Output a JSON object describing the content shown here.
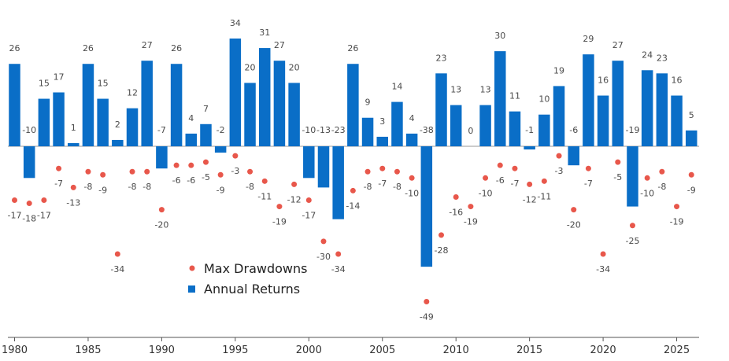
{
  "chart_data": {
    "type": "bar",
    "title": "",
    "xlabel": "",
    "ylabel": "",
    "x": [
      1980,
      1981,
      1982,
      1983,
      1984,
      1985,
      1986,
      1987,
      1988,
      1989,
      1990,
      1991,
      1992,
      1993,
      1994,
      1995,
      1996,
      1997,
      1998,
      1999,
      2000,
      2001,
      2002,
      2003,
      2004,
      2005,
      2006,
      2007,
      2008,
      2009,
      2010,
      2011,
      2012,
      2013,
      2014,
      2015,
      2016,
      2017,
      2018,
      2019,
      2020,
      2021,
      2022,
      2023,
      2024,
      2025,
      2026
    ],
    "series": [
      {
        "name": "Annual Returns",
        "kind": "bar",
        "color": "#0a6ec7",
        "values": [
          26,
          -10,
          15,
          17,
          1,
          26,
          15,
          2,
          12,
          27,
          -7,
          26,
          4,
          7,
          -2,
          34,
          20,
          31,
          27,
          20,
          -10,
          -13,
          -23,
          26,
          9,
          3,
          14,
          4,
          -38,
          23,
          13,
          0,
          13,
          30,
          11,
          -1,
          10,
          19,
          -6,
          29,
          16,
          27,
          -19,
          24,
          23,
          16,
          5
        ],
        "labels": [
          "26",
          "-10",
          "15",
          "17",
          "1",
          "26",
          "15",
          "2",
          "12",
          "27",
          "-7",
          "26",
          "4",
          "7",
          "-2",
          "34",
          "20",
          "31",
          "27",
          "20",
          "-10",
          "-13",
          "-23",
          "26",
          "9",
          "3",
          "14",
          "4",
          "-38",
          "23",
          "13",
          "0",
          "13",
          "30",
          "11",
          "-1",
          "10",
          "19",
          "-6",
          "29",
          "16",
          "27",
          "-19",
          "24",
          "23",
          "16",
          "5"
        ]
      },
      {
        "name": "Max Drawdowns",
        "kind": "scatter",
        "color": "#e8574b",
        "values": [
          -17,
          -18,
          -17,
          -7,
          -13,
          -8,
          -9,
          -34,
          -8,
          -8,
          -20,
          -6,
          -6,
          -5,
          -9,
          -3,
          -8,
          -11,
          -19,
          -12,
          -17,
          -30,
          -34,
          -14,
          -8,
          -7,
          -8,
          -10,
          -49,
          -28,
          -16,
          -19,
          -10,
          -6,
          -7,
          -12,
          -11,
          -3,
          -20,
          -7,
          -34,
          -5,
          -25,
          -10,
          -8,
          -19,
          -9
        ],
        "labels": [
          "-17",
          "-18",
          "-17",
          "-7",
          "-13",
          "-8",
          "-9",
          "-34",
          "-8",
          "-8",
          "-20",
          "-6",
          "-6",
          "-5",
          "-9",
          "-3",
          "-8",
          "-11",
          "-19",
          "-12",
          "-17",
          "-30",
          "-34",
          "-14",
          "-8",
          "-7",
          "-8",
          "-10",
          "-49",
          "-28",
          "-16",
          "-19",
          "-10",
          "-6",
          "-7",
          "-12",
          "-11",
          "-3",
          "-20",
          "-7",
          "-34",
          "-5",
          "-25",
          "-10",
          "-8",
          "-19",
          "-9"
        ]
      }
    ],
    "x_ticks": [
      "1980",
      "1985",
      "1990",
      "1995",
      "2000",
      "2005",
      "2010",
      "2015",
      "2020",
      "2025"
    ],
    "legend": [
      "Max Drawdowns",
      "Annual Returns"
    ],
    "legend_position": "center-left",
    "ylim": [
      -60,
      40
    ],
    "grid": false
  }
}
